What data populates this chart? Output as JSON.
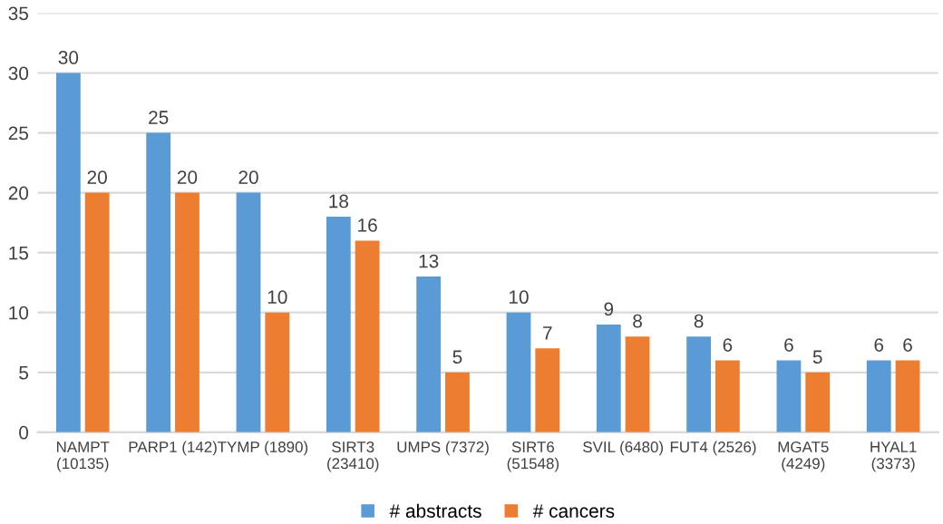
{
  "chart_data": {
    "type": "bar",
    "categories": [
      "NAMPT\n(10135)",
      "PARP1 (142)",
      "TYMP (1890)",
      "SIRT3\n(23410)",
      "UMPS (7372)",
      "SIRT6\n(51548)",
      "SVIL (6480)",
      "FUT4 (2526)",
      "MGAT5\n(4249)",
      "HYAL1\n(3373)"
    ],
    "series": [
      {
        "name": "# abstracts",
        "color": "#5b9bd5",
        "values": [
          30,
          25,
          20,
          18,
          13,
          10,
          9,
          8,
          6,
          6
        ]
      },
      {
        "name": "# cancers",
        "color": "#ed7d31",
        "values": [
          20,
          20,
          10,
          16,
          5,
          7,
          8,
          6,
          5,
          6
        ]
      }
    ],
    "ylim": [
      0,
      35
    ],
    "yticks": [
      0,
      5,
      10,
      15,
      20,
      25,
      30,
      35
    ],
    "grid": "y",
    "legend": "bottom",
    "data_labels": true
  }
}
